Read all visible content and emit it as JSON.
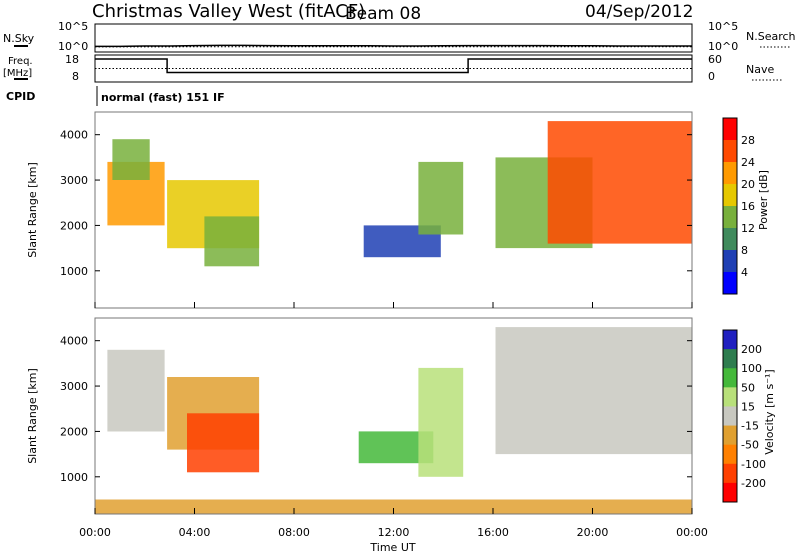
{
  "header": {
    "station": "Christmas Valley West (fitACF)",
    "beam": "Beam 08",
    "date": "04/Sep/2012"
  },
  "top_panels": {
    "nsky_label": "N.Sky",
    "nsky_ticks": [
      "10^5",
      "10^0"
    ],
    "nsearch_label": "N.Search",
    "nsearch_ticks": [
      "10^5",
      "10^0"
    ],
    "freq_label": "Freq.",
    "freq_unit": "[MHz]",
    "freq_ticks": [
      "18",
      "8"
    ],
    "nave_label": "Nave",
    "nave_ticks": [
      "60",
      "0"
    ],
    "cpid_label": "CPID",
    "cpid_value": "normal (fast) 151 IF"
  },
  "colorbars": {
    "power": {
      "title": "Power [dB]",
      "ticks": [
        "28",
        "24",
        "20",
        "16",
        "12",
        "8",
        "4"
      ],
      "colors": [
        "#ff0000",
        "#ff4a00",
        "#ff9a00",
        "#e6c800",
        "#78b03c",
        "#3f8a5c",
        "#1f3fb4",
        "#0000ff"
      ]
    },
    "velocity": {
      "title": "Velocity [m s⁻¹]",
      "ticks": [
        "200",
        "100",
        "50",
        "15",
        "-15",
        "-50",
        "-100",
        "-200"
      ],
      "colors": [
        "#2020c0",
        "#2e7d4f",
        "#44b83a",
        "#b8e07a",
        "#c8c8c0",
        "#e0a030",
        "#ff8000",
        "#ff4000",
        "#ff0000"
      ]
    }
  },
  "axes": {
    "ylabel": "Slant Range [km]",
    "xlabel": "Time UT",
    "y_ticks": [
      "4000",
      "3000",
      "2000",
      "1000"
    ],
    "x_ticks": [
      "00:00",
      "04:00",
      "08:00",
      "12:00",
      "16:00",
      "20:00",
      "00:00"
    ]
  },
  "chart_data": [
    {
      "type": "line",
      "title": "N.Sky / N.Search",
      "x": [
        0,
        1,
        2,
        3,
        4,
        5,
        6,
        7,
        8,
        9,
        10,
        11,
        12,
        13,
        14,
        15,
        16,
        17,
        18,
        19,
        20,
        21,
        22,
        23,
        24
      ],
      "series": [
        {
          "name": "N.Sky",
          "values": [
            10,
            10,
            12,
            12,
            14,
            15,
            15,
            14,
            13,
            13,
            13,
            13,
            12,
            12,
            13,
            14,
            14,
            14,
            14,
            13,
            13,
            12,
            12,
            12,
            12
          ]
        },
        {
          "name": "N.Search",
          "values": [
            8,
            8,
            8,
            8,
            9,
            9,
            9,
            9,
            9,
            9,
            9,
            9,
            9,
            9,
            9,
            9,
            9,
            9,
            9,
            9,
            9,
            9,
            9,
            9,
            9
          ]
        }
      ],
      "xlim": [
        0,
        24
      ],
      "ylim": [
        0,
        100000
      ],
      "yscale": "log"
    },
    {
      "type": "line",
      "title": "Freq. / Nave",
      "series": [
        {
          "name": "Freq. [MHz]",
          "x": [
            0,
            2.9,
            2.9,
            15,
            15,
            24
          ],
          "values": [
            16.5,
            16.5,
            11.5,
            11.5,
            16.5,
            16.5
          ]
        },
        {
          "name": "Nave",
          "x": [
            0,
            24
          ],
          "values": [
            30,
            30
          ]
        }
      ],
      "xlim": [
        0,
        24
      ],
      "ylim_freq": [
        8,
        18
      ],
      "ylim_nave": [
        0,
        60
      ]
    },
    {
      "type": "heatmap",
      "title": "Power [dB]",
      "xlabel": "Time UT",
      "ylabel": "Slant Range [km]",
      "xlim": [
        0,
        24
      ],
      "ylim": [
        180,
        4500
      ],
      "zlim": [
        0,
        30
      ],
      "regions": [
        {
          "t": [
            0.5,
            2.8
          ],
          "r": [
            2000,
            3400
          ],
          "power": 22
        },
        {
          "t": [
            0.7,
            2.2
          ],
          "r": [
            3000,
            3900
          ],
          "power": 14
        },
        {
          "t": [
            2.9,
            6.6
          ],
          "r": [
            1500,
            3000
          ],
          "power": 16
        },
        {
          "t": [
            4.4,
            6.6
          ],
          "r": [
            1100,
            2200
          ],
          "power": 12
        },
        {
          "t": [
            10.8,
            13.9
          ],
          "r": [
            1300,
            2000
          ],
          "power": 6
        },
        {
          "t": [
            13.0,
            14.8
          ],
          "r": [
            1800,
            3400
          ],
          "power": 15
        },
        {
          "t": [
            16.1,
            20.0
          ],
          "r": [
            1500,
            3500
          ],
          "power": 14
        },
        {
          "t": [
            18.2,
            24.0
          ],
          "r": [
            1600,
            4300
          ],
          "power": 26
        }
      ]
    },
    {
      "type": "heatmap",
      "title": "Velocity [m s⁻¹]",
      "xlabel": "Time UT",
      "ylabel": "Slant Range [km]",
      "xlim": [
        0,
        24
      ],
      "ylim": [
        180,
        4500
      ],
      "zlim": [
        -200,
        200
      ],
      "regions": [
        {
          "t": [
            0.5,
            2.8
          ],
          "r": [
            2000,
            3800
          ],
          "velocity": 0
        },
        {
          "t": [
            2.9,
            6.6
          ],
          "r": [
            1600,
            3200
          ],
          "velocity": -40
        },
        {
          "t": [
            3.7,
            6.6
          ],
          "r": [
            1100,
            2400
          ],
          "velocity": -200
        },
        {
          "t": [
            10.6,
            13.6
          ],
          "r": [
            1300,
            2000
          ],
          "velocity": 50
        },
        {
          "t": [
            13.0,
            14.8
          ],
          "r": [
            1000,
            3400
          ],
          "velocity": 30
        },
        {
          "t": [
            16.1,
            24.0
          ],
          "r": [
            1500,
            4300
          ],
          "velocity": 0
        },
        {
          "t": [
            0.0,
            24.0
          ],
          "r": [
            180,
            500
          ],
          "velocity": -50
        }
      ]
    }
  ]
}
